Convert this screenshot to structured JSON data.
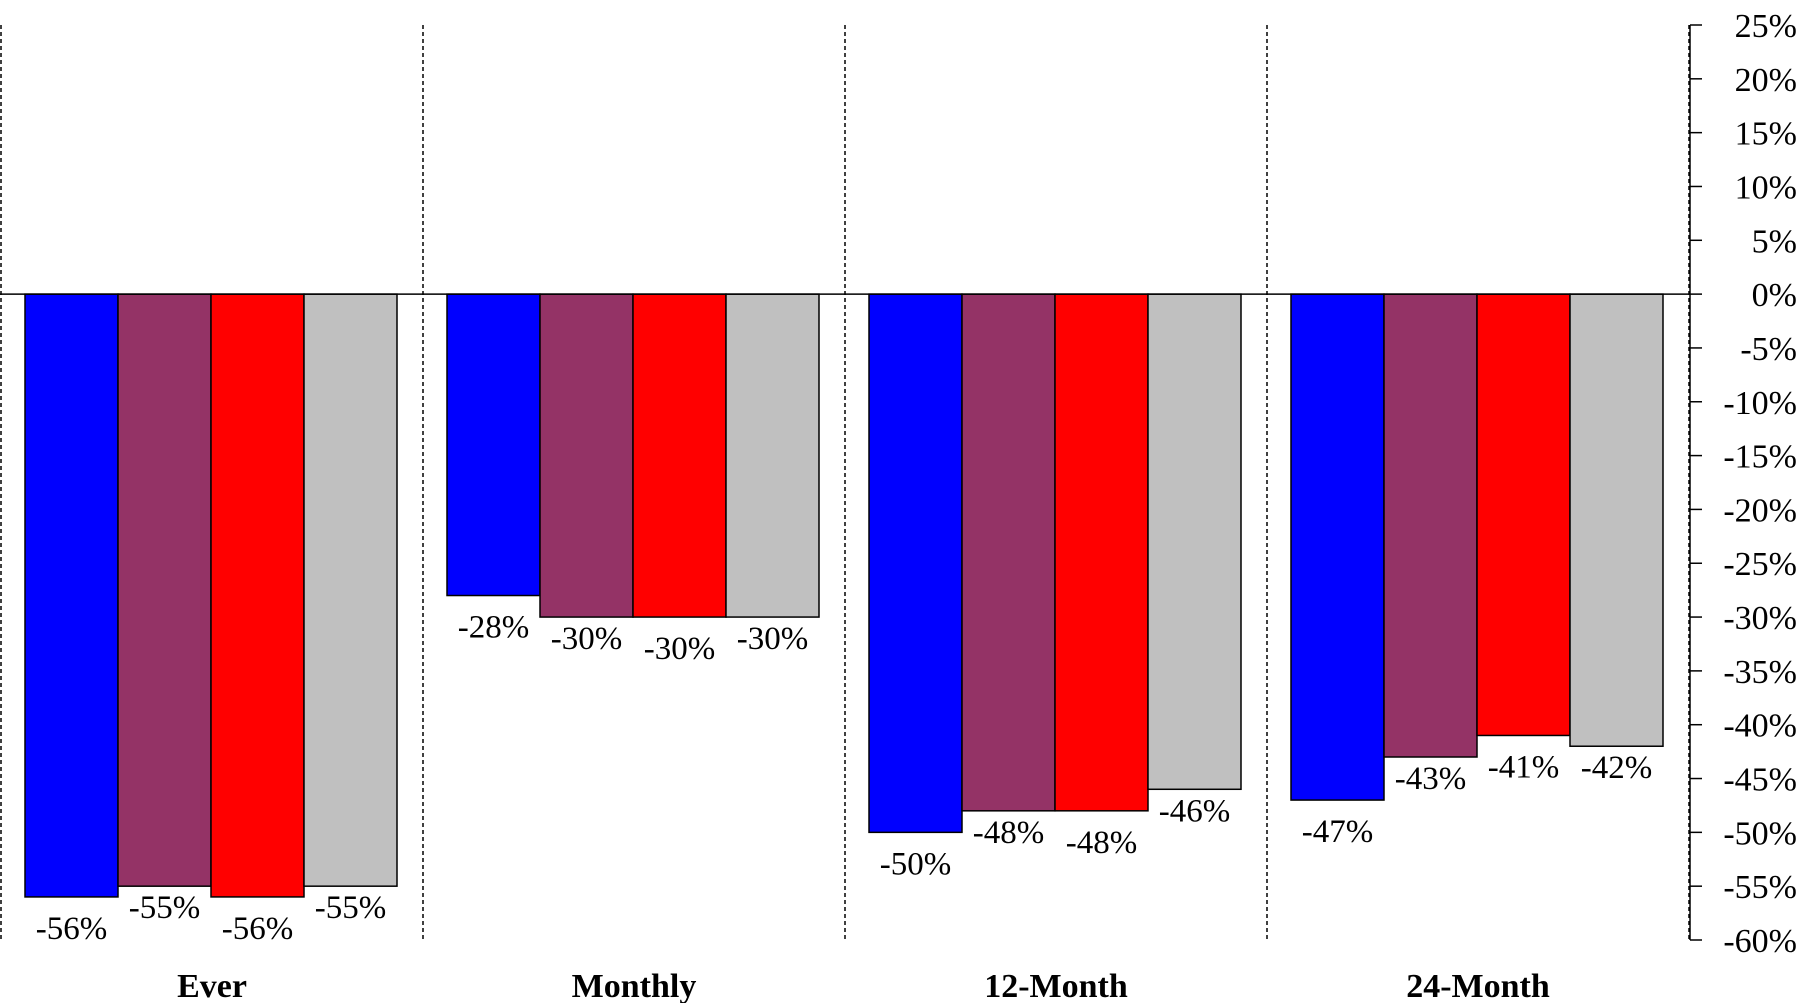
{
  "chart_data": {
    "type": "bar",
    "title": "",
    "xlabel": "",
    "ylabel": "",
    "categories": [
      "Ever",
      "Monthly",
      "12-Month",
      "24-Month"
    ],
    "series": [
      {
        "color": "#0000ff",
        "values": [
          -56,
          -28,
          -50,
          -47
        ],
        "labels": [
          "-56%",
          "-28%",
          "-50%",
          "-47%"
        ]
      },
      {
        "color": "#943366",
        "values": [
          -55,
          -30,
          -48,
          -43
        ],
        "labels": [
          "-55%",
          "-30%",
          "-48%",
          "-43%"
        ]
      },
      {
        "color": "#ff0000",
        "values": [
          -56,
          -30,
          -48,
          -41
        ],
        "labels": [
          "-56%",
          "-30%",
          "-48%",
          "-41%"
        ]
      },
      {
        "color": "#c0c0c0",
        "values": [
          -55,
          -30,
          -46,
          -42
        ],
        "labels": [
          "-55%",
          "-30%",
          "-46%",
          "-42%"
        ]
      }
    ],
    "ylim": [
      -60,
      25
    ],
    "yticks": [
      "25%",
      "20%",
      "15%",
      "10%",
      "5%",
      "0%",
      "-5%",
      "-10%",
      "-15%",
      "-20%",
      "-25%",
      "-30%",
      "-35%",
      "-40%",
      "-45%",
      "-50%",
      "-55%",
      "-60%"
    ],
    "y_axis_side": "right",
    "category_separators": "dashed",
    "legend": "none",
    "grid": false
  }
}
